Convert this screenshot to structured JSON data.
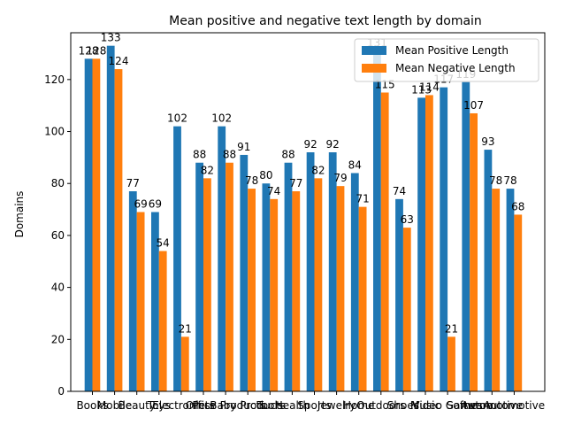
{
  "chart_data": {
    "type": "bar",
    "title": "Mean positive and negative text length by domain",
    "xlabel": "",
    "ylabel": "Domains",
    "ylim": [
      0,
      138
    ],
    "yticks": [
      0,
      20,
      40,
      60,
      80,
      100,
      120
    ],
    "grid": false,
    "legend_position": "top-right",
    "categories": [
      "Books",
      "Mobile",
      "Beauty",
      "Toys",
      "Electronics",
      "Pets",
      "Office Products",
      "Baby Products",
      "Tools",
      "Health",
      "Sports",
      "Jewelry",
      "Home",
      "Outdoors",
      "Shoes",
      "Music",
      "Video Games",
      "Software",
      "Automotive",
      "Automotive"
    ],
    "series": [
      {
        "name": "Mean Positive Length",
        "color": "#1f77b4",
        "values": [
          128,
          133,
          77,
          69,
          102,
          88,
          102,
          91,
          80,
          88,
          92,
          92,
          84,
          131,
          74,
          113,
          117,
          119,
          93,
          78
        ]
      },
      {
        "name": "Mean Negative Length",
        "color": "#ff7f0e",
        "values": [
          128,
          124,
          69,
          54,
          21,
          82,
          88,
          78,
          74,
          77,
          82,
          79,
          71,
          115,
          63,
          114,
          21,
          107,
          78,
          68
        ]
      }
    ]
  }
}
